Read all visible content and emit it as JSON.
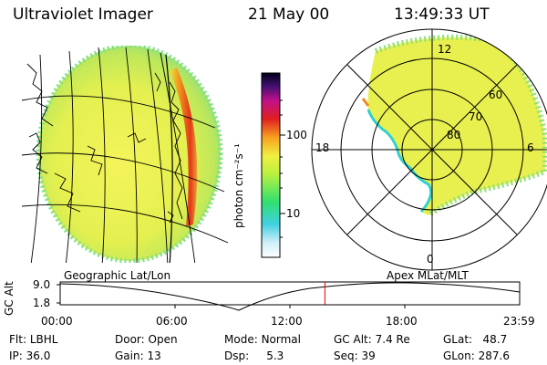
{
  "header": {
    "instrument": "Ultraviolet Imager",
    "date": "21 May 00",
    "time": "13:49:33 UT"
  },
  "colorbar": {
    "unit_label": "photon cm⁻²s⁻¹",
    "ticks": [
      "100",
      "10"
    ]
  },
  "polar": {
    "mlt_labels": {
      "top": "12",
      "left": "18",
      "right": "6",
      "bottom": "0"
    },
    "lat_labels": [
      "60",
      "70",
      "80"
    ]
  },
  "timeline": {
    "y_axis_label": "GC Alt",
    "y_ticks": [
      "9.0",
      "1.8"
    ],
    "left_title": "Geographic Lat/Lon",
    "right_title": "Apex MLat/MLT",
    "x_ticks": [
      "00:00",
      "06:00",
      "12:00",
      "18:00",
      "23:59"
    ],
    "current_time_fraction": 0.5762
  },
  "status": {
    "flt": {
      "label": "Flt:",
      "value": "LBHL"
    },
    "ip": {
      "label": "IP:",
      "value": "36.0"
    },
    "door": {
      "label": "Door:",
      "value": "Open"
    },
    "gain": {
      "label": "Gain:",
      "value": "13"
    },
    "mode": {
      "label": "Mode:",
      "value": "Normal"
    },
    "dsp": {
      "label": "Dsp:",
      "value": "5.3"
    },
    "gc_alt": {
      "label": "GC Alt:",
      "value": "7.4 Re"
    },
    "seq": {
      "label": "Seq:",
      "value": "39"
    },
    "glat": {
      "label": "GLat:",
      "value": "48.7"
    },
    "glon": {
      "label": "GLon:",
      "value": "287.6"
    }
  }
}
